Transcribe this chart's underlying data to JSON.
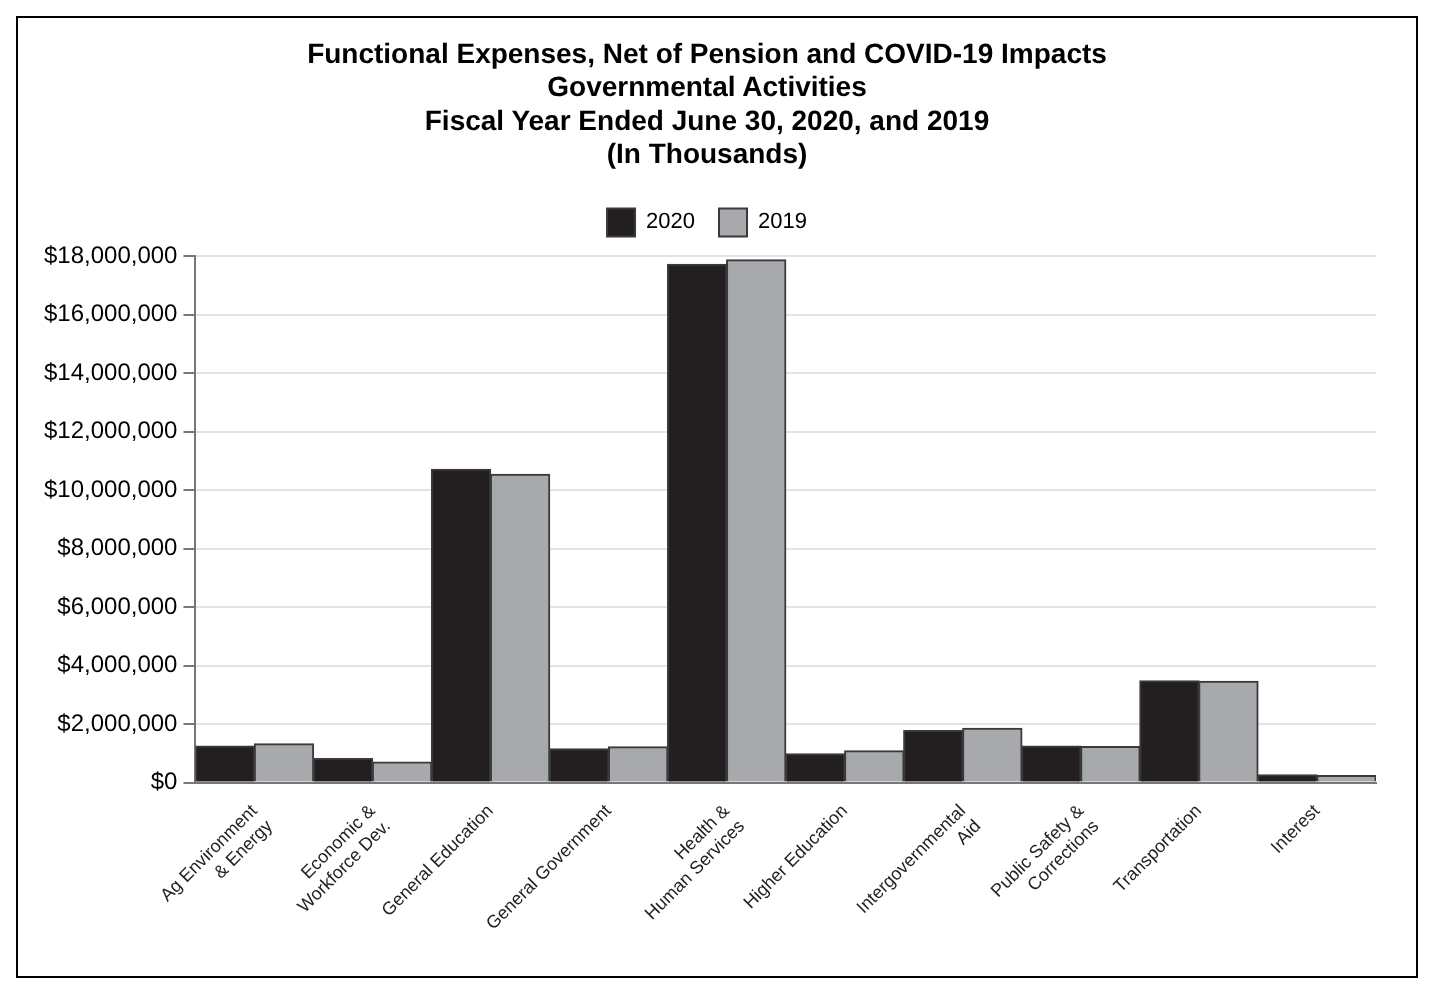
{
  "chart_data": {
    "type": "bar",
    "title": "Functional Expenses, Net of Pension and COVID-19 Impacts\nGovernmental Activities\nFiscal Year Ended June 30, 2020, and 2019\n(In Thousands)",
    "categories": [
      "Ag Environment\n& Energy",
      "Economic &\nWorkforce Dev.",
      "General Education",
      "General Government",
      "Health &\nHuman Services",
      "Higher Education",
      "Intergovernmental\nAid",
      "Public Safety &\nCorrections",
      "Transportation",
      "Interest"
    ],
    "series": [
      {
        "name": "2020",
        "color": "#231f20",
        "values": [
          1250000,
          820000,
          10710000,
          1150000,
          17730000,
          980000,
          1780000,
          1250000,
          3480000,
          260000
        ]
      },
      {
        "name": "2019",
        "color": "#a7a9ac",
        "values": [
          1320000,
          700000,
          10540000,
          1220000,
          17880000,
          1080000,
          1850000,
          1230000,
          3460000,
          240000
        ]
      }
    ],
    "ylim": [
      0,
      18000000
    ],
    "yticks": [
      {
        "value": 0,
        "label": "$0"
      },
      {
        "value": 2000000,
        "label": "$2,000,000"
      },
      {
        "value": 4000000,
        "label": "$4,000,000"
      },
      {
        "value": 6000000,
        "label": "$6,000,000"
      },
      {
        "value": 8000000,
        "label": "$8,000,000"
      },
      {
        "value": 10000000,
        "label": "$10,000,000"
      },
      {
        "value": 12000000,
        "label": "$12,000,000"
      },
      {
        "value": 14000000,
        "label": "$14,000,000"
      },
      {
        "value": 16000000,
        "label": "$16,000,000"
      },
      {
        "value": 18000000,
        "label": "$18,000,000"
      }
    ],
    "grid": "y",
    "legend": "top"
  }
}
